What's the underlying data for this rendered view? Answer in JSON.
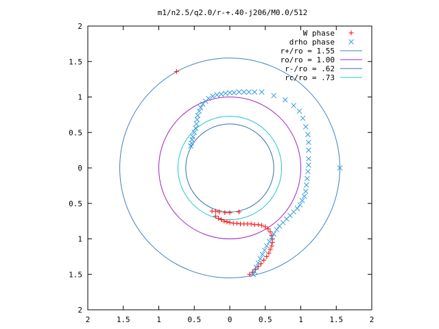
{
  "chart_data": {
    "type": "scatter",
    "title": "m1/n2.5/q2.0/r-+.40-j206/M0.0/512",
    "xlabel": "",
    "ylabel": "",
    "xlim": [
      -2,
      2
    ],
    "ylim": [
      -2,
      2
    ],
    "x_tick_labels": [
      "2",
      "1.5",
      "1",
      "0.5",
      "0",
      "0.5",
      "1",
      "1.5",
      "2"
    ],
    "y_tick_labels": [
      "2",
      "1.5",
      "1",
      "0.5",
      "0",
      "0.5",
      "1",
      "1.5",
      "2"
    ],
    "grid": false,
    "legend_position": "top-right",
    "circles": [
      {
        "name": "r+/ro = 1.55",
        "r": 1.55,
        "color": "#3b7fc4"
      },
      {
        "name": "ro/ro = 1.00",
        "r": 1.0,
        "color": "#a020c0"
      },
      {
        "name": "r-/ro = .62",
        "r": 0.62,
        "color": "#2f6fad"
      },
      {
        "name": "rc/ro = .73",
        "r": 0.73,
        "color": "#20c8d0"
      }
    ],
    "series": [
      {
        "name": "W phase",
        "marker": "+",
        "color": "#ff0000",
        "points": [
          [
            -0.75,
            1.36
          ],
          [
            0.13,
            -0.62
          ],
          [
            0.0,
            -0.63
          ],
          [
            -0.07,
            -0.63
          ],
          [
            -0.15,
            -0.62
          ],
          [
            -0.2,
            -0.61
          ],
          [
            -0.25,
            -0.61
          ],
          [
            -0.2,
            -0.68
          ],
          [
            -0.16,
            -0.71
          ],
          [
            -0.12,
            -0.73
          ],
          [
            -0.08,
            -0.75
          ],
          [
            -0.04,
            -0.76
          ],
          [
            0.0,
            -0.77
          ],
          [
            0.05,
            -0.78
          ],
          [
            0.1,
            -0.78
          ],
          [
            0.15,
            -0.79
          ],
          [
            0.2,
            -0.79
          ],
          [
            0.25,
            -0.79
          ],
          [
            0.3,
            -0.79
          ],
          [
            0.35,
            -0.8
          ],
          [
            0.4,
            -0.8
          ],
          [
            0.45,
            -0.81
          ],
          [
            0.5,
            -0.83
          ],
          [
            0.54,
            -0.86
          ],
          [
            0.57,
            -0.9
          ],
          [
            0.59,
            -0.95
          ],
          [
            0.6,
            -1.0
          ],
          [
            0.6,
            -1.05
          ],
          [
            0.59,
            -1.1
          ],
          [
            0.57,
            -1.15
          ],
          [
            0.55,
            -1.2
          ],
          [
            0.52,
            -1.25
          ],
          [
            0.48,
            -1.3
          ],
          [
            0.44,
            -1.35
          ],
          [
            0.4,
            -1.39
          ],
          [
            0.36,
            -1.43
          ],
          [
            0.32,
            -1.47
          ],
          [
            0.28,
            -1.5
          ]
        ]
      },
      {
        "name": "drho phase",
        "marker": "x",
        "color": "#3399dd",
        "points": [
          [
            1.55,
            0.0
          ],
          [
            0.45,
            1.07
          ],
          [
            0.62,
            1.02
          ],
          [
            0.78,
            0.96
          ],
          [
            0.9,
            0.88
          ],
          [
            0.98,
            0.8
          ],
          [
            1.03,
            0.7
          ],
          [
            1.07,
            0.58
          ],
          [
            1.1,
            0.47
          ],
          [
            1.11,
            0.36
          ],
          [
            1.11,
            0.25
          ],
          [
            1.11,
            0.13
          ],
          [
            1.11,
            0.04
          ],
          [
            1.1,
            -0.05
          ],
          [
            1.09,
            -0.15
          ],
          [
            1.08,
            -0.24
          ],
          [
            1.07,
            -0.33
          ],
          [
            1.05,
            -0.4
          ],
          [
            1.02,
            -0.46
          ],
          [
            0.99,
            -0.52
          ],
          [
            0.95,
            -0.57
          ],
          [
            0.9,
            -0.62
          ],
          [
            0.85,
            -0.67
          ],
          [
            0.8,
            -0.72
          ],
          [
            0.75,
            -0.77
          ],
          [
            0.7,
            -0.82
          ],
          [
            0.66,
            -0.87
          ],
          [
            0.62,
            -0.93
          ],
          [
            0.59,
            -0.98
          ],
          [
            0.56,
            -1.04
          ],
          [
            0.52,
            -1.1
          ],
          [
            0.49,
            -1.16
          ],
          [
            0.46,
            -1.22
          ],
          [
            0.43,
            -1.28
          ],
          [
            0.4,
            -1.34
          ],
          [
            0.37,
            -1.4
          ],
          [
            0.35,
            -1.46
          ],
          [
            0.33,
            -1.5
          ],
          [
            0.35,
            1.07
          ],
          [
            0.27,
            1.07
          ],
          [
            0.2,
            1.07
          ],
          [
            0.13,
            1.07
          ],
          [
            0.06,
            1.06
          ],
          [
            0.0,
            1.06
          ],
          [
            -0.06,
            1.05
          ],
          [
            -0.12,
            1.04
          ],
          [
            -0.18,
            1.03
          ],
          [
            -0.24,
            1.01
          ],
          [
            -0.3,
            0.98
          ],
          [
            -0.34,
            0.94
          ],
          [
            -0.38,
            0.9
          ],
          [
            -0.41,
            0.85
          ],
          [
            -0.43,
            0.8
          ],
          [
            -0.45,
            0.74
          ],
          [
            -0.46,
            0.68
          ],
          [
            -0.47,
            0.62
          ],
          [
            -0.48,
            0.56
          ],
          [
            -0.5,
            0.5
          ],
          [
            -0.52,
            0.44
          ],
          [
            -0.53,
            0.4
          ],
          [
            -0.54,
            0.35
          ],
          [
            -0.55,
            0.31
          ]
        ]
      }
    ]
  }
}
